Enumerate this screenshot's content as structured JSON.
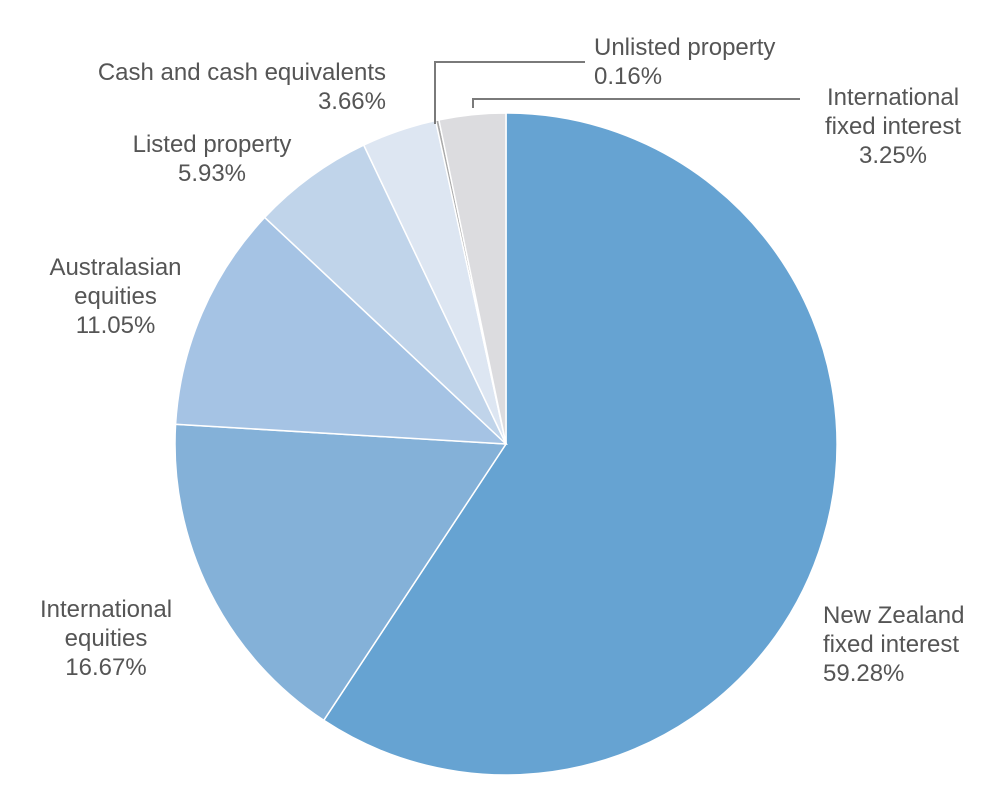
{
  "chart_data": {
    "type": "pie",
    "title": "",
    "slices": [
      {
        "label_lines": [
          "New Zealand",
          "fixed interest"
        ],
        "value": 59.28,
        "value_text": "59.28%",
        "color": "#66a3d2"
      },
      {
        "label_lines": [
          "International",
          "equities"
        ],
        "value": 16.67,
        "value_text": "16.67%",
        "color": "#84b1d8"
      },
      {
        "label_lines": [
          "Australasian",
          "equities"
        ],
        "value": 11.05,
        "value_text": "11.05%",
        "color": "#a5c3e4"
      },
      {
        "label_lines": [
          "Listed property"
        ],
        "value": 5.93,
        "value_text": "5.93%",
        "color": "#c0d4ea"
      },
      {
        "label_lines": [
          "Cash and cash equivalents"
        ],
        "value": 3.66,
        "value_text": "3.66%",
        "color": "#dde6f2"
      },
      {
        "label_lines": [
          "Unlisted property"
        ],
        "value": 0.16,
        "value_text": "0.16%",
        "color": "#a9a9a9"
      },
      {
        "label_lines": [
          "International",
          "fixed interest"
        ],
        "value": 3.25,
        "value_text": "3.25%",
        "color": "#dcdcdf"
      }
    ]
  }
}
